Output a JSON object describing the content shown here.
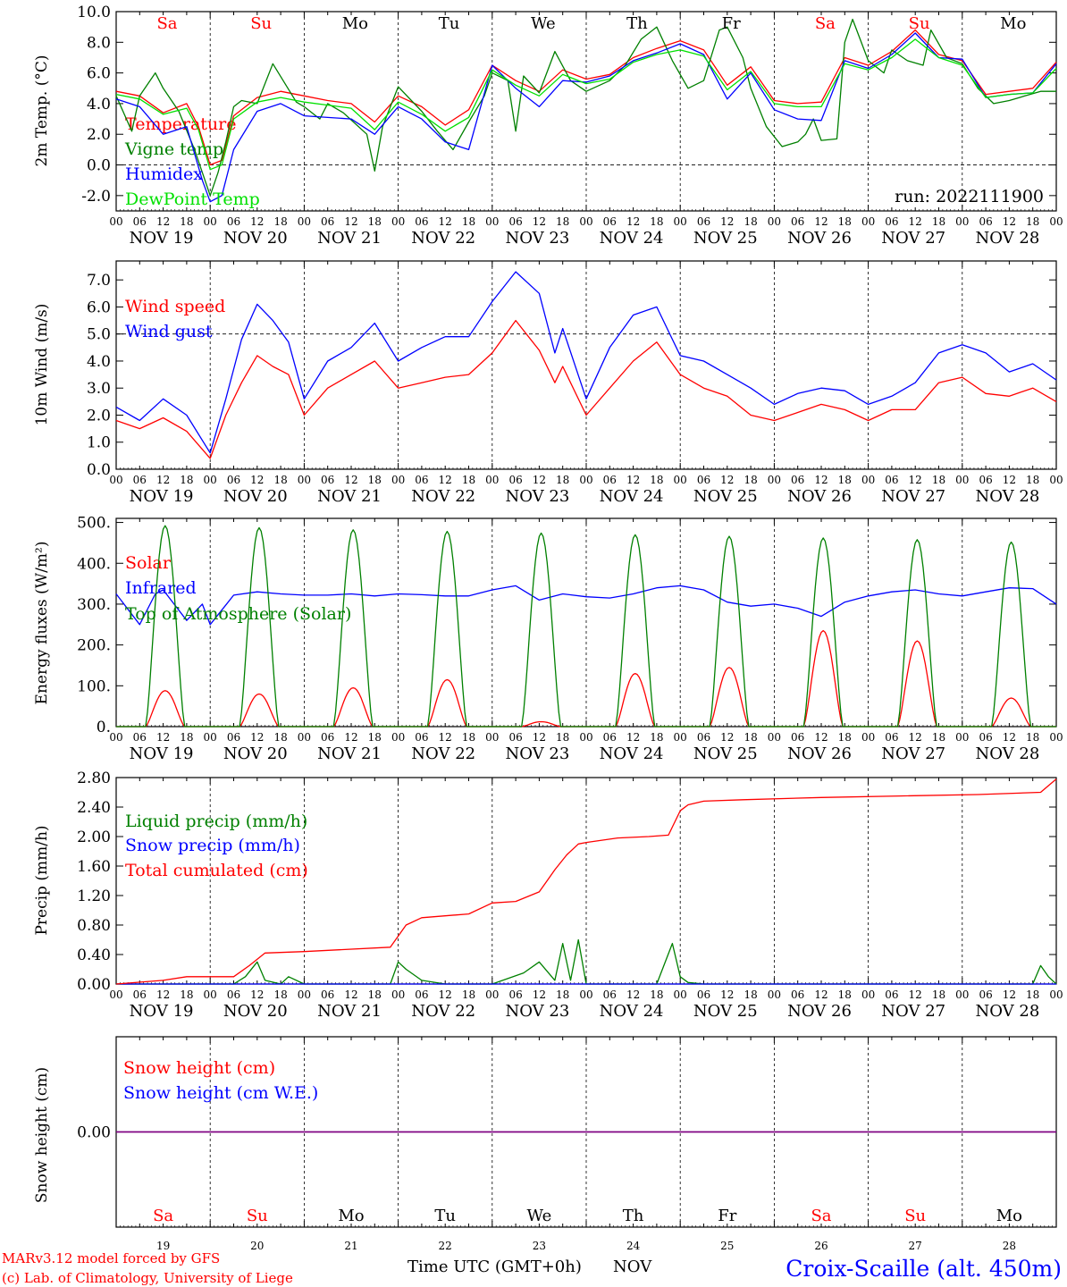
{
  "colors": {
    "red": "#ff0000",
    "green": "#008000",
    "blue": "#0000ff",
    "light_green": "#00e000",
    "purple": "#800080",
    "weekend": "#ff0000",
    "weekday": "#000000"
  },
  "x_ticks": [
    "00",
    "06",
    "12",
    "18"
  ],
  "final_tick": "00",
  "dates": [
    "NOV 19",
    "NOV 20",
    "NOV 21",
    "NOV 22",
    "NOV 23",
    "NOV 24",
    "NOV 25",
    "NOV 26",
    "NOV 27",
    "NOV 28"
  ],
  "days": [
    {
      "label": "Sa",
      "weekend": true
    },
    {
      "label": "Su",
      "weekend": true
    },
    {
      "label": "Mo",
      "weekend": false
    },
    {
      "label": "Tu",
      "weekend": false
    },
    {
      "label": "We",
      "weekend": false
    },
    {
      "label": "Th",
      "weekend": false
    },
    {
      "label": "Fr",
      "weekend": false
    },
    {
      "label": "Sa",
      "weekend": true
    },
    {
      "label": "Su",
      "weekend": true
    },
    {
      "label": "Mo",
      "weekend": false
    }
  ],
  "bottom_day_numbers": [
    "19",
    "20",
    "21",
    "22",
    "23",
    "24",
    "25",
    "26",
    "27",
    "28"
  ],
  "footer": {
    "credit_line1": "MARv3.12 model forced by GFS",
    "credit_line2": "(c) Lab. of Climatology, University of Liege",
    "axis_title": "Time UTC (GMT+0h)",
    "month": "NOV",
    "station": "Croix-Scaille (alt. 450m)"
  },
  "chart_data": [
    {
      "type": "line",
      "ylabel": "2m Temp. (°C)",
      "ylim": [
        -3,
        10
      ],
      "yticks": [
        "-2.0",
        "0.0",
        "2.0",
        "4.0",
        "6.0",
        "8.0",
        "10.0"
      ],
      "reference_line": 0,
      "annotation": "run: 2022111900",
      "x_unit": "hours since NOV 19 00 UTC",
      "series": [
        {
          "name": "Temperature",
          "color": "#ff0000",
          "x": [
            0,
            6,
            12,
            18,
            21,
            24,
            27,
            30,
            36,
            42,
            48,
            54,
            60,
            66,
            72,
            78,
            84,
            90,
            96,
            102,
            108,
            114,
            120,
            126,
            132,
            138,
            144,
            150,
            156,
            162,
            168,
            174,
            180,
            186,
            192,
            198,
            204,
            210,
            216,
            222,
            228,
            234,
            240
          ],
          "y": [
            4.8,
            4.5,
            3.4,
            4.0,
            2.5,
            0.0,
            0.3,
            3.2,
            4.4,
            4.8,
            4.5,
            4.2,
            4.0,
            2.8,
            4.5,
            3.8,
            2.6,
            3.6,
            6.5,
            5.5,
            4.8,
            6.2,
            5.6,
            5.9,
            7.0,
            7.6,
            8.1,
            7.5,
            5.2,
            6.4,
            4.2,
            4.0,
            4.1,
            7.0,
            6.5,
            7.4,
            8.8,
            7.2,
            6.8,
            4.6,
            4.8,
            5.0,
            6.7
          ]
        },
        {
          "name": "Vigne temp",
          "color": "#008000",
          "x": [
            0,
            4,
            6,
            10,
            12,
            16,
            20,
            24,
            26,
            28,
            30,
            32,
            36,
            40,
            46,
            48,
            52,
            54,
            58,
            64,
            66,
            68,
            72,
            78,
            82,
            86,
            90,
            94,
            96,
            100,
            102,
            104,
            108,
            112,
            116,
            120,
            126,
            130,
            134,
            138,
            142,
            146,
            150,
            154,
            156,
            160,
            162,
            166,
            170,
            174,
            176,
            178,
            180,
            184,
            186,
            188,
            192,
            196,
            198,
            202,
            206,
            208,
            212,
            216,
            220,
            224,
            228,
            232,
            236,
            240
          ],
          "y": [
            4.5,
            2.2,
            4.5,
            6.0,
            5.0,
            3.5,
            1.0,
            -2.0,
            -0.5,
            1.5,
            3.8,
            4.2,
            4.0,
            6.6,
            4.1,
            3.8,
            3.0,
            4.0,
            3.4,
            2.0,
            -0.4,
            2.5,
            5.1,
            3.5,
            2.2,
            1.0,
            2.8,
            4.5,
            6.0,
            5.5,
            2.2,
            5.8,
            4.7,
            7.4,
            5.5,
            4.8,
            5.5,
            6.5,
            8.2,
            9.0,
            6.8,
            5.0,
            5.5,
            8.8,
            9.0,
            7.0,
            5.0,
            2.5,
            1.2,
            1.5,
            2.0,
            3.0,
            1.6,
            1.7,
            8.0,
            9.5,
            6.8,
            6.0,
            7.5,
            6.8,
            6.5,
            8.8,
            7.0,
            6.6,
            5.0,
            4.0,
            4.2,
            4.5,
            4.8,
            4.8
          ]
        },
        {
          "name": "Humidex",
          "color": "#0000ff",
          "x": [
            0,
            6,
            12,
            18,
            22,
            24,
            27,
            30,
            36,
            42,
            48,
            54,
            60,
            66,
            72,
            78,
            84,
            90,
            96,
            102,
            108,
            114,
            120,
            126,
            132,
            138,
            144,
            150,
            156,
            162,
            168,
            174,
            180,
            186,
            192,
            198,
            204,
            210,
            216,
            222,
            228,
            234,
            240
          ],
          "y": [
            4.3,
            3.8,
            2.0,
            2.5,
            -1.0,
            -2.4,
            -2.0,
            1.0,
            3.5,
            4.0,
            3.2,
            3.1,
            3.0,
            2.0,
            3.8,
            3.0,
            1.5,
            1.0,
            6.5,
            5.0,
            3.8,
            5.5,
            5.4,
            5.8,
            6.8,
            7.3,
            7.9,
            7.2,
            4.3,
            6.0,
            3.6,
            3.0,
            2.9,
            6.8,
            6.3,
            7.2,
            8.6,
            7.0,
            6.9,
            4.4,
            4.6,
            4.7,
            6.6
          ]
        },
        {
          "name": "DewPoint Temp",
          "color": "#00e000",
          "x": [
            0,
            6,
            12,
            18,
            21,
            24,
            27,
            30,
            36,
            42,
            48,
            54,
            60,
            66,
            72,
            78,
            84,
            90,
            96,
            102,
            108,
            114,
            120,
            126,
            132,
            138,
            144,
            150,
            156,
            162,
            168,
            174,
            180,
            186,
            192,
            198,
            204,
            210,
            216,
            222,
            228,
            234,
            240
          ],
          "y": [
            4.6,
            4.3,
            3.3,
            3.7,
            2.3,
            -0.3,
            0.0,
            3.0,
            4.1,
            4.4,
            4.1,
            3.9,
            3.7,
            2.3,
            4.1,
            3.3,
            2.2,
            3.1,
            6.2,
            5.2,
            4.5,
            5.9,
            5.3,
            5.6,
            6.7,
            7.2,
            7.5,
            7.1,
            4.9,
            6.1,
            4.0,
            3.8,
            3.8,
            6.6,
            6.2,
            7.0,
            8.2,
            7.0,
            6.5,
            4.4,
            4.6,
            4.7,
            6.3
          ]
        }
      ]
    },
    {
      "type": "line",
      "ylabel": "10m Wind (m/s)",
      "ylim": [
        0,
        7.7
      ],
      "yticks": [
        "0.0",
        "1.0",
        "2.0",
        "3.0",
        "4.0",
        "5.0",
        "6.0",
        "7.0"
      ],
      "reference_line": 5,
      "x_unit": "hours since NOV 19 00 UTC",
      "series": [
        {
          "name": "Wind speed",
          "color": "#ff0000",
          "x": [
            0,
            6,
            12,
            18,
            24,
            28,
            32,
            36,
            40,
            44,
            48,
            54,
            60,
            66,
            72,
            78,
            84,
            90,
            96,
            102,
            108,
            112,
            114,
            120,
            126,
            132,
            138,
            144,
            150,
            156,
            162,
            168,
            174,
            180,
            186,
            192,
            198,
            204,
            210,
            216,
            222,
            228,
            234,
            240
          ],
          "y": [
            1.8,
            1.5,
            1.9,
            1.4,
            0.4,
            2.0,
            3.2,
            4.2,
            3.8,
            3.5,
            2.0,
            3.0,
            3.5,
            4.0,
            3.0,
            3.2,
            3.4,
            3.5,
            4.3,
            5.5,
            4.4,
            3.2,
            3.8,
            2.0,
            3.0,
            4.0,
            4.7,
            3.5,
            3.0,
            2.7,
            2.0,
            1.8,
            2.1,
            2.4,
            2.2,
            1.8,
            2.2,
            2.2,
            3.2,
            3.4,
            2.8,
            2.7,
            3.0,
            2.5
          ]
        },
        {
          "name": "Wind gust",
          "color": "#0000ff",
          "x": [
            0,
            6,
            12,
            18,
            24,
            28,
            32,
            36,
            40,
            44,
            48,
            54,
            60,
            66,
            72,
            78,
            84,
            90,
            96,
            102,
            108,
            112,
            114,
            120,
            126,
            132,
            138,
            144,
            150,
            156,
            162,
            168,
            174,
            180,
            186,
            192,
            198,
            204,
            210,
            216,
            222,
            228,
            234,
            240
          ],
          "y": [
            2.3,
            1.8,
            2.6,
            2.0,
            0.6,
            2.6,
            4.8,
            6.1,
            5.5,
            4.7,
            2.6,
            4.0,
            4.5,
            5.4,
            4.0,
            4.5,
            4.9,
            4.9,
            6.2,
            7.3,
            6.5,
            4.3,
            5.2,
            2.6,
            4.5,
            5.7,
            6.0,
            4.2,
            4.0,
            3.5,
            3.0,
            2.4,
            2.8,
            3.0,
            2.9,
            2.4,
            2.7,
            3.2,
            4.3,
            4.6,
            4.3,
            3.6,
            3.9,
            3.3
          ]
        }
      ]
    },
    {
      "type": "line",
      "ylabel": "Energy fluxes (W/m²)",
      "ylim": [
        0,
        510
      ],
      "yticks": [
        "0.",
        "100.",
        "200.",
        "300.",
        "400.",
        "500."
      ],
      "x_unit": "hours since NOV 19 00 UTC",
      "series": [
        {
          "name": "Solar",
          "color": "#ff0000",
          "shape": "daily_peak",
          "sunrise": 7.5,
          "sunset": 17.5,
          "peaks": [
            88,
            80,
            95,
            115,
            12,
            130,
            145,
            235,
            210,
            70
          ]
        },
        {
          "name": "Infrared",
          "color": "#0000ff",
          "x": [
            0,
            6,
            10,
            12,
            18,
            22,
            24,
            30,
            36,
            42,
            48,
            54,
            60,
            66,
            72,
            78,
            84,
            90,
            96,
            102,
            108,
            114,
            120,
            126,
            132,
            138,
            144,
            150,
            156,
            162,
            168,
            174,
            180,
            186,
            192,
            198,
            204,
            210,
            216,
            222,
            228,
            234,
            240
          ],
          "y": [
            325,
            250,
            325,
            335,
            260,
            300,
            250,
            322,
            330,
            325,
            322,
            322,
            325,
            320,
            325,
            323,
            320,
            320,
            335,
            345,
            310,
            325,
            318,
            315,
            325,
            340,
            345,
            335,
            305,
            295,
            300,
            290,
            270,
            305,
            320,
            330,
            335,
            325,
            320,
            330,
            340,
            338,
            300
          ]
        },
        {
          "name": "Top of Atmosphere (Solar)",
          "color": "#008000",
          "shape": "daily_peak",
          "sunrise": 7.5,
          "sunset": 17.5,
          "peaks": [
            492,
            487,
            482,
            478,
            474,
            470,
            466,
            462,
            458,
            452
          ]
        }
      ]
    },
    {
      "type": "line",
      "ylabel": "Precip (mm/h)",
      "ylim": [
        0,
        2.8
      ],
      "yticks": [
        "0.00",
        "0.40",
        "0.80",
        "1.20",
        "1.60",
        "2.00",
        "2.40",
        "2.80"
      ],
      "x_unit": "hours since NOV 19 00 UTC",
      "series": [
        {
          "name": "Liquid precip (mm/h)",
          "color": "#008000",
          "x": [
            0,
            30,
            33,
            36,
            38,
            42,
            44,
            48,
            70,
            72,
            74,
            78,
            84,
            96,
            104,
            108,
            112,
            114,
            116,
            118,
            120,
            128,
            138,
            142,
            144,
            146,
            150,
            156,
            162,
            170,
            180,
            186,
            192,
            198,
            216,
            225,
            234,
            236,
            238,
            240
          ],
          "y": [
            0,
            0,
            0.1,
            0.3,
            0.05,
            0,
            0.1,
            0,
            0,
            0.3,
            0.2,
            0.05,
            0,
            0,
            0.15,
            0.3,
            0.05,
            0.55,
            0.05,
            0.6,
            0,
            0,
            0,
            0.55,
            0.1,
            0.02,
            0,
            0,
            0,
            0,
            0,
            0,
            0,
            0,
            0,
            0,
            0,
            0.25,
            0.1,
            0
          ]
        },
        {
          "name": "Snow precip (mm/h)",
          "color": "#0000ff",
          "x": [
            0,
            240
          ],
          "y": [
            0,
            0
          ]
        },
        {
          "name": "Total cumulated (cm)",
          "color": "#ff0000",
          "x": [
            0,
            12,
            18,
            30,
            34,
            38,
            48,
            70,
            74,
            78,
            90,
            96,
            102,
            108,
            110,
            112,
            115,
            118,
            120,
            128,
            136,
            141,
            144,
            146,
            150,
            160,
            180,
            200,
            220,
            236,
            240
          ],
          "y": [
            0,
            0.05,
            0.1,
            0.1,
            0.25,
            0.42,
            0.44,
            0.5,
            0.8,
            0.9,
            0.95,
            1.1,
            1.12,
            1.25,
            1.4,
            1.55,
            1.75,
            1.9,
            1.92,
            1.98,
            2.0,
            2.02,
            2.35,
            2.43,
            2.48,
            2.5,
            2.53,
            2.55,
            2.57,
            2.6,
            2.78
          ]
        }
      ]
    },
    {
      "type": "line",
      "ylabel": "Snow height (cm)",
      "ylim": [
        -1,
        1
      ],
      "yticks": [
        "0.00"
      ],
      "x_unit": "hours since NOV 19 00 UTC",
      "series": [
        {
          "name": "Snow height (cm)",
          "color": "#ff0000",
          "x": [
            0,
            240
          ],
          "y": [
            0,
            0
          ]
        },
        {
          "name": "Snow height (cm W.E.)",
          "color": "#0000ff",
          "x": [
            0,
            240
          ],
          "y": [
            0,
            0
          ]
        }
      ]
    }
  ]
}
